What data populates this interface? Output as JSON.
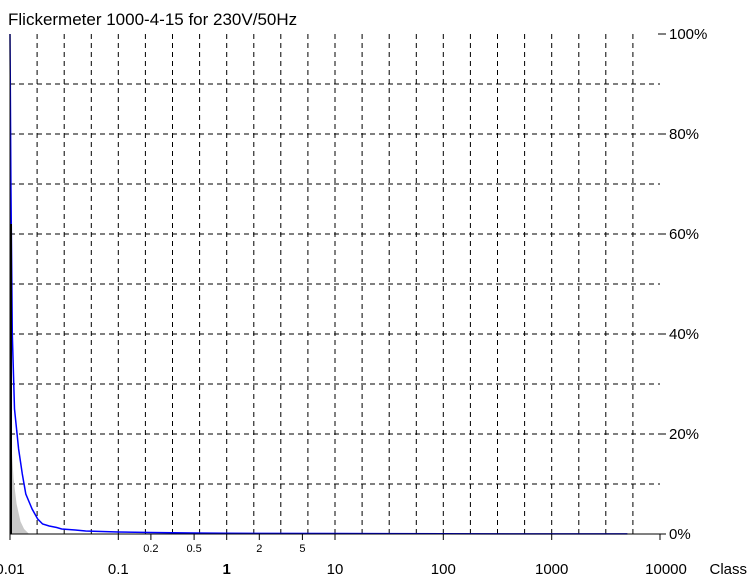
{
  "chart_data": {
    "type": "line",
    "title": "Flickermeter 1000-4-15  for 230V/50Hz",
    "x_scale": "log",
    "xlim": [
      0.01,
      10000
    ],
    "ylim": [
      0,
      100
    ],
    "x_major_ticks": [
      {
        "value": 0.01,
        "label": "0.01",
        "bold": false
      },
      {
        "value": 0.1,
        "label": "0.1",
        "bold": false
      },
      {
        "value": 1,
        "label": "1",
        "bold": true
      },
      {
        "value": 10,
        "label": "10",
        "bold": false
      },
      {
        "value": 100,
        "label": "100",
        "bold": false
      },
      {
        "value": 1000,
        "label": "1000",
        "bold": false
      },
      {
        "value": 10000,
        "label": "10000",
        "bold": false
      }
    ],
    "x_minor_ticks": [
      {
        "value": 0.2,
        "label": "0.2"
      },
      {
        "value": 0.5,
        "label": "0.5"
      },
      {
        "value": 2,
        "label": "2"
      },
      {
        "value": 5,
        "label": "5"
      }
    ],
    "x_unit_label": "Class",
    "y_ticks": [
      {
        "value": 0,
        "label": "0%"
      },
      {
        "value": 20,
        "label": "20%"
      },
      {
        "value": 40,
        "label": "40%"
      },
      {
        "value": 60,
        "label": "60%"
      },
      {
        "value": 80,
        "label": "80%"
      },
      {
        "value": 100,
        "label": "100%"
      }
    ],
    "grid": true,
    "series": [
      {
        "kind": "line",
        "color": "#0000ff",
        "x": [
          0.01,
          0.0102,
          0.0105,
          0.011,
          0.012,
          0.013,
          0.014,
          0.016,
          0.018,
          0.02,
          0.023,
          0.027,
          0.03,
          0.04,
          0.05,
          0.07,
          0.1,
          0.2,
          0.5,
          1,
          10,
          100,
          1000,
          5000
        ],
        "y": [
          100,
          70,
          40,
          25,
          17,
          12,
          8,
          5,
          3,
          2,
          1.6,
          1.3,
          1.0,
          0.8,
          0.6,
          0.5,
          0.4,
          0.3,
          0.2,
          0.15,
          0.1,
          0.05,
          0.03,
          0.02
        ]
      },
      {
        "kind": "area",
        "color": "#c8c8c8",
        "x": [
          0.01,
          0.0108,
          0.0115,
          0.0125,
          0.0135,
          0.015
        ],
        "y": [
          22.5,
          11,
          6,
          2.5,
          1,
          0
        ]
      },
      {
        "kind": "bar",
        "color": "#000000",
        "x": [
          0.01
        ],
        "y": [
          62
        ]
      }
    ]
  }
}
